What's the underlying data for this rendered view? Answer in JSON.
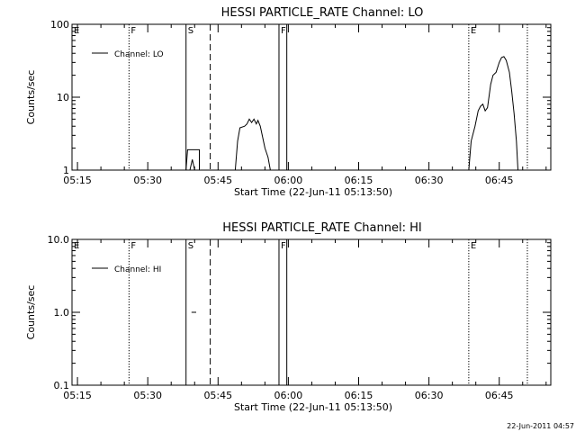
{
  "footer": {
    "timestamp": "22-Jun-2011 04:57"
  },
  "chart_data": [
    {
      "type": "line",
      "title": "HESSI PARTICLE_RATE Channel: LO",
      "xlabel": "Start Time (22-Jun-11 05:13:50)",
      "ylabel": "Counts/sec",
      "yscale": "log",
      "xlim": [
        "05:13:50",
        "06:56:00"
      ],
      "ylim": [
        1,
        100
      ],
      "xticks": [
        "05:15",
        "05:30",
        "05:45",
        "06:00",
        "06:15",
        "06:30",
        "06:45"
      ],
      "yticks": [
        "1",
        "10",
        "100"
      ],
      "legend": {
        "position": "top-left",
        "entries": [
          "Channel: LO"
        ]
      },
      "markers": [
        {
          "label": "E",
          "time": "05:13:50",
          "style": "solid"
        },
        {
          "label": "F",
          "time": "05:26:00",
          "style": "dotted"
        },
        {
          "label": "S",
          "time": "05:38:10",
          "style": "solid"
        },
        {
          "label": "",
          "time": "05:43:20",
          "style": "dashed"
        },
        {
          "label": "F",
          "time": "05:58:00",
          "style": "solid"
        },
        {
          "label": "",
          "time": "05:59:40",
          "style": "solid"
        },
        {
          "label": "E",
          "time": "06:38:30",
          "style": "dotted"
        },
        {
          "label": "",
          "time": "06:51:00",
          "style": "dotted"
        }
      ],
      "series": [
        {
          "name": "Channel: LO",
          "segments": [
            [
              [
                "05:38:10",
                1.0
              ],
              [
                "05:38:30",
                1.9
              ],
              [
                "05:41:00",
                1.9
              ],
              [
                "05:41:00",
                1.0
              ]
            ],
            [
              [
                "05:39:00",
                1.0
              ],
              [
                "05:39:30",
                1.4
              ],
              [
                "05:40:00",
                1.0
              ]
            ],
            [
              [
                "05:48:40",
                1.0
              ],
              [
                "05:49:10",
                2.5
              ],
              [
                "05:49:40",
                3.8
              ],
              [
                "05:50:40",
                4.0
              ],
              [
                "05:51:10",
                4.3
              ],
              [
                "05:51:40",
                5.0
              ],
              [
                "05:52:10",
                4.5
              ],
              [
                "05:52:40",
                5.0
              ],
              [
                "05:53:10",
                4.3
              ],
              [
                "05:53:30",
                4.8
              ],
              [
                "05:54:00",
                4.0
              ],
              [
                "05:54:20",
                3.2
              ],
              [
                "05:55:00",
                2.0
              ],
              [
                "05:55:40",
                1.5
              ],
              [
                "05:56:10",
                1.0
              ]
            ],
            [
              [
                "06:38:30",
                1.0
              ],
              [
                "06:39:00",
                2.5
              ],
              [
                "06:39:50",
                4.0
              ],
              [
                "06:40:30",
                6.5
              ],
              [
                "06:41:00",
                7.5
              ],
              [
                "06:41:30",
                8.0
              ],
              [
                "06:42:00",
                6.5
              ],
              [
                "06:42:30",
                7.2
              ],
              [
                "06:43:10",
                15
              ],
              [
                "06:43:40",
                20
              ],
              [
                "06:44:20",
                22
              ],
              [
                "06:45:00",
                30
              ],
              [
                "06:45:30",
                35
              ],
              [
                "06:46:00",
                36
              ],
              [
                "06:46:30",
                32
              ],
              [
                "06:47:10",
                22
              ],
              [
                "06:47:40",
                12
              ],
              [
                "06:48:10",
                6
              ],
              [
                "06:48:40",
                2.5
              ],
              [
                "06:49:00",
                1.0
              ]
            ]
          ]
        }
      ]
    },
    {
      "type": "line",
      "title": "HESSI PARTICLE_RATE Channel: HI",
      "xlabel": "Start Time (22-Jun-11 05:13:50)",
      "ylabel": "Counts/sec",
      "yscale": "log",
      "xlim": [
        "05:13:50",
        "06:56:00"
      ],
      "ylim": [
        0.1,
        10
      ],
      "xticks": [
        "05:15",
        "05:30",
        "05:45",
        "06:00",
        "06:15",
        "06:30",
        "06:45"
      ],
      "yticks": [
        "0.1",
        "1.0",
        "10.0"
      ],
      "legend": {
        "position": "top-left",
        "entries": [
          "Channel: HI"
        ]
      },
      "markers": [
        {
          "label": "E",
          "time": "05:13:50",
          "style": "solid"
        },
        {
          "label": "F",
          "time": "05:26:00",
          "style": "dotted"
        },
        {
          "label": "S",
          "time": "05:38:10",
          "style": "solid"
        },
        {
          "label": "",
          "time": "05:43:20",
          "style": "dashed"
        },
        {
          "label": "F",
          "time": "05:58:00",
          "style": "solid"
        },
        {
          "label": "",
          "time": "05:59:40",
          "style": "solid"
        },
        {
          "label": "E",
          "time": "06:38:30",
          "style": "dotted"
        },
        {
          "label": "",
          "time": "06:51:00",
          "style": "dotted"
        }
      ],
      "series": [
        {
          "name": "Channel: HI",
          "segments": [
            [
              [
                "05:39:20",
                1.0
              ],
              [
                "05:40:20",
                1.0
              ]
            ]
          ]
        }
      ]
    }
  ]
}
